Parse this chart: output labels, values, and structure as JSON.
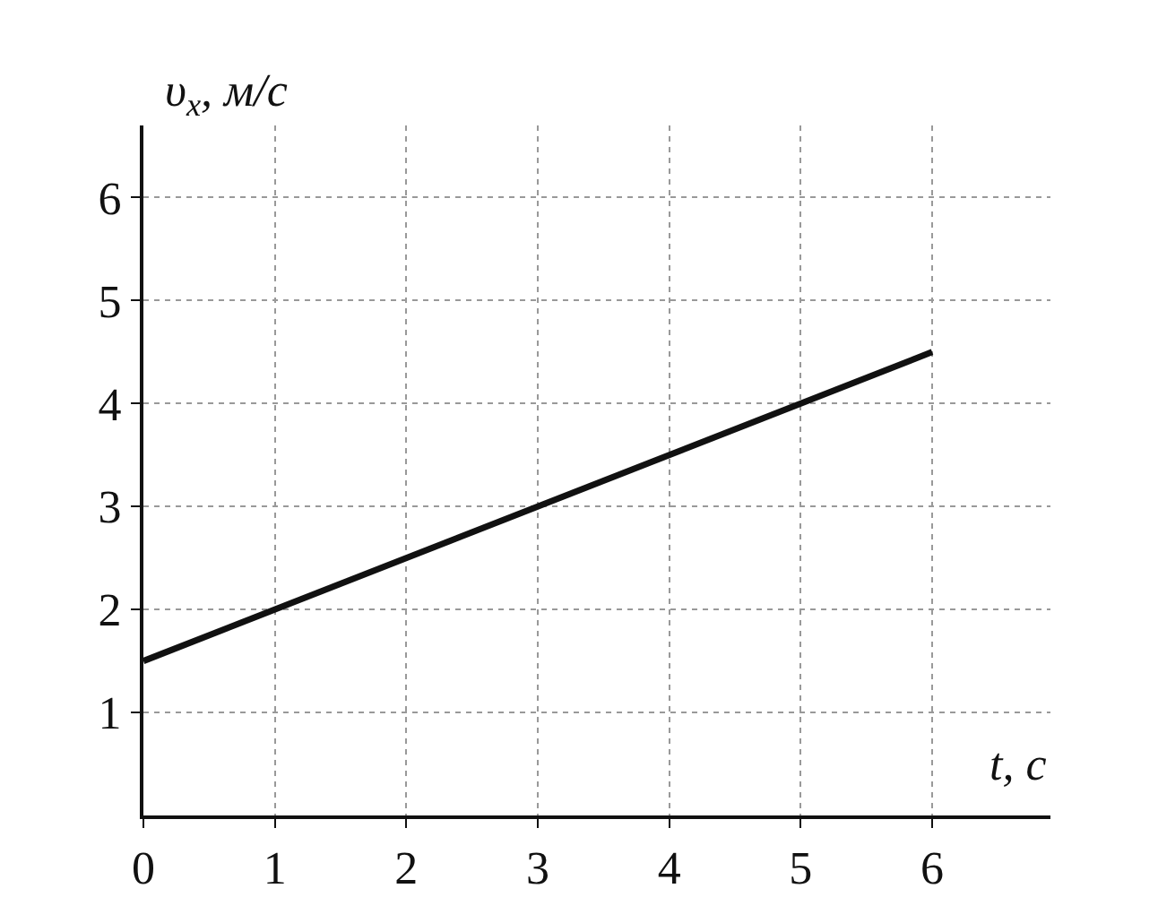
{
  "chart_data": {
    "type": "line",
    "xlabel": "t, с",
    "ylabel": "υ$_{x}$, м/с",
    "x": [
      0,
      6
    ],
    "series": [
      {
        "color": "#111111",
        "values": [
          1.5,
          4.5
        ]
      }
    ],
    "xlim": [
      0,
      6.9
    ],
    "ylim": [
      0,
      6.7
    ],
    "xticks": [
      0,
      1,
      2,
      3,
      4,
      5,
      6
    ],
    "yticks": [
      1,
      2,
      3,
      4,
      5,
      6
    ],
    "grid": true,
    "marker": "none",
    "line_style": "solid"
  }
}
